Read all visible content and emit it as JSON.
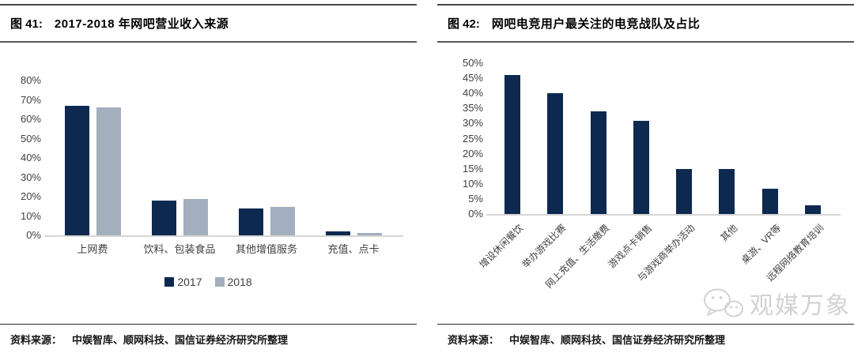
{
  "panels": [
    {
      "figure_label": "图 41:",
      "title": "2017-2018 年网吧营业收入来源",
      "source_label": "资料来源：",
      "source_text": "中娱智库、顺网科技、国信证券经济研究所整理"
    },
    {
      "figure_label": "图 42:",
      "title": "网吧电竞用户最关注的电竞战队及占比",
      "source_label": "资料来源：",
      "source_text": "中娱智库、顺网科技、国信证券经济研究所整理"
    }
  ],
  "chart_data": [
    {
      "type": "bar",
      "title": "2017-2018 年网吧营业收入来源",
      "categories": [
        "上网费",
        "饮料、包装食品",
        "其他增值服务",
        "充值、点卡"
      ],
      "series": [
        {
          "name": "2017",
          "color": "#0E2950",
          "values": [
            67,
            18,
            14,
            2
          ]
        },
        {
          "name": "2018",
          "color": "#A3AEBE",
          "values": [
            66,
            18.7,
            14.5,
            1.3
          ]
        }
      ],
      "ylim": [
        0,
        80
      ],
      "ytick_step": 10,
      "ytick_suffix": "%",
      "grid": false,
      "legend_position": "bottom",
      "xlabel": "",
      "ylabel": ""
    },
    {
      "type": "bar",
      "title": "网吧电竞用户最关注的电竞战队及占比",
      "categories": [
        "增设休闲餐饮",
        "举办游戏比赛",
        "网上充值、生活缴费",
        "游戏点卡销售",
        "与游戏商举办活动",
        "其他",
        "桌游、VR等",
        "远程网络教育培训"
      ],
      "values": [
        46,
        40,
        34,
        31,
        15,
        15,
        8.5,
        3
      ],
      "bar_color": "#0E2950",
      "ylim": [
        0,
        50
      ],
      "ytick_step": 5,
      "ytick_suffix": "%",
      "grid": false,
      "legend_position": "none",
      "xtick_rotation": 45,
      "xlabel": "",
      "ylabel": ""
    }
  ],
  "watermark": {
    "icon": "wechat-bubbles-icon",
    "text": "观媒万象",
    "color": "#d2d2d2"
  },
  "colors": {
    "bar_navy": "#0E2950",
    "bar_gray": "#A3AEBE",
    "axis_text": "#3f3f3f",
    "baseline": "#d6d6d6",
    "rule": "#4a4a4a"
  }
}
